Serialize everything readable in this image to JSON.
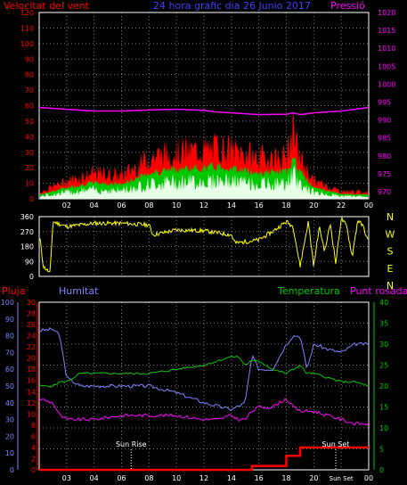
{
  "colors": {
    "background": "#000000",
    "axis": "#ffffff",
    "grid": "#7a7a7a",
    "wind_speed": "#ff0000",
    "wind_mean": "#00c800",
    "wind_light": "#e6ffe6",
    "pressure": "#ff00ff",
    "direction": "#ffff00",
    "rain": "#ff0000",
    "humidity": "#8080ff",
    "temperature": "#00c800",
    "dewpoint": "#ff00ff",
    "title": "#4040ff",
    "cardinal": "#ffff00"
  },
  "top_panel": {
    "left_title": "Velocitat del vent",
    "title": "24 hora grafic dia 26 Junio 2017",
    "right_title": "Pressió",
    "left_ticks": [
      "0",
      "10",
      "20",
      "30",
      "40",
      "50",
      "60",
      "70",
      "80",
      "90",
      "100",
      "110",
      "120"
    ],
    "right_ticks": [
      "970",
      "975",
      "980",
      "985",
      "990",
      "995",
      "1000",
      "1005",
      "1010",
      "1015",
      "1020"
    ],
    "x_ticks": [
      "02",
      "04",
      "06",
      "08",
      "10",
      "12",
      "14",
      "16",
      "18",
      "20",
      "22",
      "00"
    ]
  },
  "dir_panel": {
    "left_ticks": [
      "0",
      "90",
      "180",
      "270",
      "360"
    ],
    "cardinals": [
      "N",
      "W",
      "S",
      "E",
      "N"
    ]
  },
  "bottom_panel": {
    "labels": {
      "rain": "Pluja",
      "humidity": "Humitat",
      "temperature": "Temperatura",
      "dewpoint": "Punt rosada"
    },
    "rain_ticks": [
      "0",
      "2",
      "4",
      "6",
      "8",
      "10",
      "12",
      "14",
      "16",
      "18",
      "20",
      "22",
      "24",
      "26",
      "28",
      "30"
    ],
    "humidity_ticks": [
      "0",
      "10",
      "20",
      "30",
      "40",
      "50",
      "60",
      "70",
      "80",
      "90",
      "100"
    ],
    "right_ticks": [
      "0",
      "5",
      "10",
      "15",
      "20",
      "25",
      "30",
      "35",
      "40"
    ],
    "x_ticks": [
      "02",
      "04",
      "06",
      "08",
      "10",
      "12",
      "14",
      "16",
      "18",
      "20",
      "22",
      "00"
    ],
    "x_ticks_display": [
      "03",
      "04",
      "06",
      "08",
      "10",
      "12",
      "14",
      "16",
      "18",
      "20",
      "Sun Set",
      "00"
    ],
    "sunrise": "Sun Rise",
    "sunset": "Sun Set"
  },
  "chart_data": [
    {
      "type": "line",
      "title": "24 hora grafic dia 26 Junio 2017",
      "xlabel": "",
      "ylabel": "Velocitat del vent",
      "y2label": "Pressió",
      "x_hours": [
        0,
        2,
        4,
        6,
        8,
        10,
        12,
        13,
        14,
        16,
        18,
        18.5,
        19,
        20,
        22,
        24
      ],
      "ylim": [
        0,
        120
      ],
      "y2lim": [
        970,
        1020
      ],
      "series": [
        {
          "name": "Velocitat del vent",
          "axis": "left",
          "values": [
            5,
            14,
            20,
            18,
            32,
            37,
            38,
            40,
            38,
            32,
            33,
            52,
            32,
            14,
            6,
            5
          ]
        },
        {
          "name": "Pressió",
          "axis": "right",
          "values": [
            993.5,
            993,
            992.5,
            992.5,
            992.8,
            993,
            992.7,
            992.2,
            992,
            991.5,
            991.6,
            992,
            991.5,
            992,
            992.5,
            993.5
          ]
        }
      ]
    },
    {
      "type": "line",
      "ylabel": "direction",
      "ylim": [
        0,
        360
      ],
      "x_hours": [
        0,
        0.3,
        0.8,
        1,
        2,
        4,
        6,
        8,
        8.3,
        10,
        12,
        14,
        14.3,
        16,
        17,
        18,
        18.5,
        19,
        19.6,
        20,
        20.4,
        20.8,
        21.2,
        21.6,
        22,
        22.4,
        22.8,
        23.2,
        23.6,
        24
      ],
      "values": [
        270,
        60,
        20,
        330,
        300,
        320,
        320,
        310,
        250,
        280,
        275,
        250,
        200,
        220,
        270,
        330,
        300,
        60,
        330,
        60,
        300,
        150,
        320,
        80,
        350,
        300,
        120,
        340,
        300,
        200
      ]
    },
    {
      "type": "line",
      "x_hours": [
        0,
        1,
        1.5,
        2,
        3,
        4,
        6,
        8,
        10,
        12,
        13,
        14,
        14.5,
        15,
        15.5,
        16,
        17,
        18,
        18.5,
        19,
        19.5,
        20,
        21,
        22,
        23,
        24
      ],
      "series": [
        {
          "name": "Pluja",
          "axis": "rain",
          "values": [
            0,
            0,
            0,
            0,
            0,
            0,
            0,
            0,
            0,
            0,
            0,
            0,
            0,
            0,
            0.7,
            0.7,
            0.7,
            2.5,
            2.5,
            4,
            4,
            4,
            4,
            4,
            4,
            4
          ]
        },
        {
          "name": "Humitat",
          "axis": "humidity",
          "values": [
            83,
            84,
            80,
            55,
            50,
            50,
            50,
            50,
            46,
            40,
            38,
            36,
            38,
            40,
            68,
            60,
            60,
            75,
            80,
            80,
            60,
            75,
            72,
            70,
            75,
            75
          ]
        },
        {
          "name": "Temperatura",
          "axis": "right",
          "values": [
            20,
            20,
            21,
            21,
            23,
            23,
            23,
            23,
            24,
            25,
            26,
            27,
            27,
            25,
            26,
            26,
            24,
            23,
            24,
            25,
            23,
            23,
            22,
            21,
            21,
            20
          ]
        },
        {
          "name": "Punt rosada",
          "axis": "right",
          "values": [
            17,
            16,
            13,
            12,
            12,
            12,
            13,
            13,
            13,
            12,
            12,
            13,
            12,
            12,
            14,
            15,
            15,
            17,
            15,
            14,
            14,
            14,
            13,
            12,
            11,
            11
          ]
        }
      ],
      "rainlim": [
        0,
        30
      ],
      "humlim": [
        0,
        100
      ],
      "rightlim": [
        0,
        40
      ],
      "events": [
        {
          "label": "Sun Rise",
          "x_hours": 6.7
        },
        {
          "label": "Sun Set",
          "x_hours": 21.6
        }
      ]
    }
  ]
}
